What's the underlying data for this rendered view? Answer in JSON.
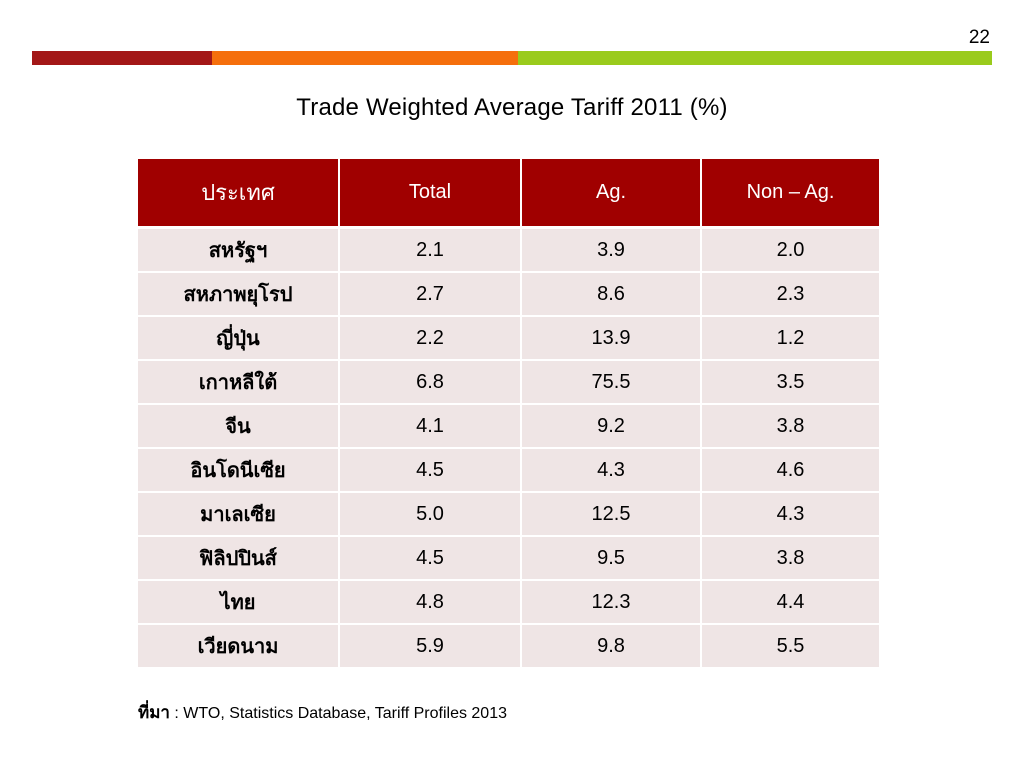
{
  "page_number": "22",
  "colors": {
    "bar_red": "#a31717",
    "bar_orange": "#f56f0c",
    "bar_green": "#9acb1c",
    "table_header_bg": "#a00000",
    "table_row_bg": "#efe5e5"
  },
  "title": "Trade Weighted Average Tariff 2011 (%)",
  "table": {
    "headers": [
      "ประเทศ",
      "Total",
      "Ag.",
      "Non – Ag."
    ],
    "rows": [
      [
        "สหรัฐฯ",
        "2.1",
        "3.9",
        "2.0"
      ],
      [
        "สหภาพยุโรป",
        "2.7",
        "8.6",
        "2.3"
      ],
      [
        "ญี่ปุ่น",
        "2.2",
        "13.9",
        "1.2"
      ],
      [
        "เกาหลีใต้",
        "6.8",
        "75.5",
        "3.5"
      ],
      [
        "จีน",
        "4.1",
        "9.2",
        "3.8"
      ],
      [
        "อินโดนีเซีย",
        "4.5",
        "4.3",
        "4.6"
      ],
      [
        "มาเลเซีย",
        "5.0",
        "12.5",
        "4.3"
      ],
      [
        "ฟิลิปปินส์",
        "4.5",
        "9.5",
        "3.8"
      ],
      [
        "ไทย",
        "4.8",
        "12.3",
        "4.4"
      ],
      [
        "เวียดนาม",
        "5.9",
        "9.8",
        "5.5"
      ]
    ]
  },
  "source": {
    "label": "ที่มา",
    "text": " : WTO, Statistics Database, Tariff Profiles 2013"
  }
}
